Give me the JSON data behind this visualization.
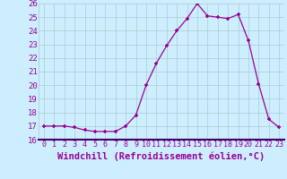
{
  "x": [
    0,
    1,
    2,
    3,
    4,
    5,
    6,
    7,
    8,
    9,
    10,
    11,
    12,
    13,
    14,
    15,
    16,
    17,
    18,
    19,
    20,
    21,
    22,
    23
  ],
  "y": [
    17.0,
    17.0,
    17.0,
    16.9,
    16.7,
    16.6,
    16.6,
    16.6,
    17.0,
    17.8,
    20.0,
    21.6,
    22.9,
    24.0,
    24.9,
    26.0,
    25.1,
    25.0,
    24.9,
    25.2,
    23.3,
    20.1,
    17.5,
    16.9
  ],
  "line_color": "#990099",
  "marker": "+",
  "bg_color": "#cceeff",
  "grid_color": "#aacccc",
  "sep_color": "#440066",
  "xlabel": "Windchill (Refroidissement éolien,°C)",
  "xlabel_color": "#990099",
  "tick_color": "#990099",
  "ylim": [
    16,
    26
  ],
  "xlim": [
    -0.5,
    23.5
  ],
  "yticks": [
    16,
    17,
    18,
    19,
    20,
    21,
    22,
    23,
    24,
    25,
    26
  ],
  "xticks": [
    0,
    1,
    2,
    3,
    4,
    5,
    6,
    7,
    8,
    9,
    10,
    11,
    12,
    13,
    14,
    15,
    16,
    17,
    18,
    19,
    20,
    21,
    22,
    23
  ]
}
